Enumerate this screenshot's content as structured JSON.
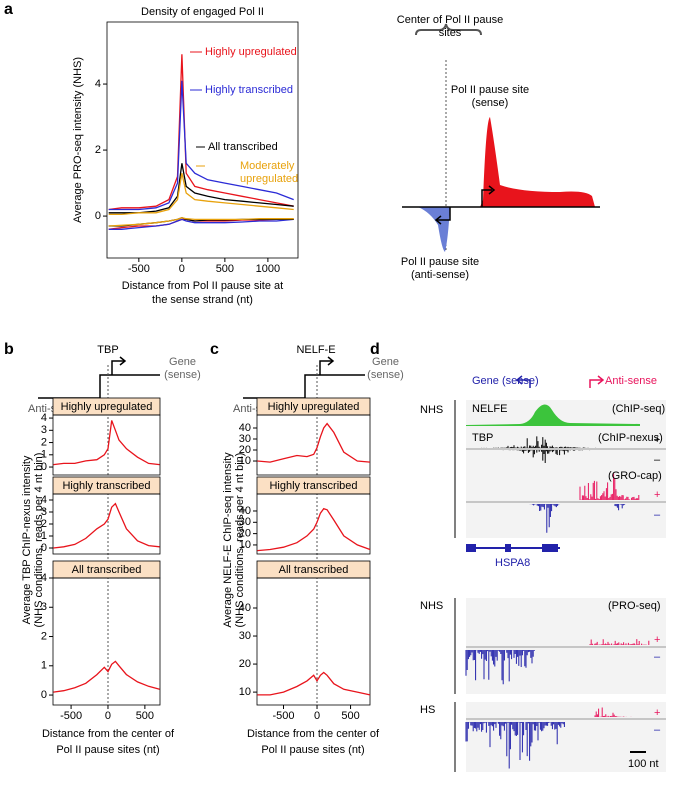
{
  "panel_labels": [
    "a",
    "b",
    "c",
    "d"
  ],
  "chart_data": [
    {
      "type": "line",
      "title": "Density of engaged Pol II",
      "ylabel": "Average PRO-seq intensity (NHS)",
      "xlabel": [
        "Distance from Pol II pause site at",
        "the sense strand (nt)"
      ],
      "x": [
        -850,
        -700,
        -500,
        -300,
        -150,
        -50,
        0,
        50,
        150,
        300,
        500,
        700,
        900,
        1100,
        1300
      ],
      "xlim": [
        -870,
        1350
      ],
      "xticks": [
        -500,
        0,
        500,
        1000
      ],
      "ylim": [
        -1.27,
        5.88
      ],
      "yticks": [
        0,
        2,
        4
      ],
      "series": [
        {
          "name": "Highly upregulated",
          "color": "#e8141c",
          "values": [
            0.2,
            0.25,
            0.25,
            0.3,
            0.5,
            1.2,
            4.9,
            1.3,
            0.9,
            0.8,
            0.7,
            0.6,
            0.5,
            0.4,
            0.3
          ]
        },
        {
          "name": "Highly transcribed",
          "color": "#2b2bd6",
          "values": [
            0.2,
            0.2,
            0.2,
            0.25,
            0.4,
            1.0,
            4.1,
            1.6,
            1.3,
            1.1,
            1.0,
            0.9,
            0.8,
            0.7,
            0.5
          ]
        },
        {
          "name": "All transcribed",
          "color": "#000000",
          "values": [
            0.1,
            0.1,
            0.1,
            0.15,
            0.25,
            0.6,
            1.6,
            0.9,
            0.7,
            0.6,
            0.5,
            0.45,
            0.4,
            0.35,
            0.3
          ]
        },
        {
          "name": "Moderately upregulated",
          "color": "#e8a20c",
          "values": [
            0.05,
            0.05,
            0.1,
            0.1,
            0.2,
            0.5,
            1.3,
            0.7,
            0.5,
            0.45,
            0.4,
            0.35,
            0.3,
            0.25,
            0.2
          ]
        },
        {
          "color": "#e8141c",
          "values": [
            -0.4,
            -0.35,
            -0.3,
            -0.3,
            -0.25,
            -0.15,
            -0.1,
            -0.1,
            -0.15,
            -0.15,
            -0.15,
            -0.12,
            -0.12,
            -0.1,
            -0.1
          ]
        },
        {
          "color": "#2b2bd6",
          "values": [
            -0.4,
            -0.4,
            -0.35,
            -0.3,
            -0.25,
            -0.15,
            -0.1,
            -0.15,
            -0.2,
            -0.2,
            -0.2,
            -0.18,
            -0.15,
            -0.15,
            -0.1
          ]
        },
        {
          "color": "#000000",
          "values": [
            -0.3,
            -0.3,
            -0.25,
            -0.2,
            -0.15,
            -0.1,
            -0.05,
            -0.1,
            -0.15,
            -0.12,
            -0.12,
            -0.1,
            -0.1,
            -0.1,
            -0.1
          ]
        },
        {
          "color": "#e8a20c",
          "values": [
            -0.3,
            -0.28,
            -0.25,
            -0.2,
            -0.15,
            -0.1,
            -0.05,
            -0.08,
            -0.1,
            -0.1,
            -0.1,
            -0.1,
            -0.08,
            -0.08,
            -0.08
          ]
        }
      ]
    },
    {
      "type": "line",
      "title": "Highly upregulated",
      "color": "#e8141c",
      "x": [
        -740,
        -600,
        -450,
        -300,
        -150,
        -50,
        0,
        50,
        100,
        150,
        250,
        400,
        550,
        700
      ],
      "values": [
        0.2,
        0.3,
        0.3,
        0.5,
        0.6,
        1.0,
        1.5,
        3.8,
        3.0,
        2.2,
        1.5,
        0.8,
        0.3,
        0.2
      ],
      "xlim": [
        -745,
        705
      ],
      "ylim": [
        -0.65,
        4.25
      ],
      "yticks": [
        0,
        1,
        2,
        3,
        4
      ]
    },
    {
      "type": "line",
      "title": "Highly transcribed",
      "color": "#e8141c",
      "x": [
        -740,
        -600,
        -450,
        -300,
        -150,
        -50,
        0,
        50,
        100,
        150,
        250,
        400,
        550,
        700
      ],
      "values": [
        0,
        0.1,
        0.3,
        0.8,
        1.6,
        2.0,
        2.4,
        3.4,
        3.7,
        3.0,
        1.6,
        0.6,
        0.2,
        0.1
      ],
      "xlim": [
        -745,
        705
      ],
      "ylim": [
        -0.5,
        4.5
      ],
      "yticks": [
        0,
        1,
        2,
        3,
        4
      ]
    },
    {
      "type": "line",
      "title": "All transcribed",
      "color": "#e8141c",
      "x": [
        -740,
        -600,
        -450,
        -300,
        -150,
        -50,
        0,
        50,
        100,
        150,
        250,
        400,
        550,
        700
      ],
      "values": [
        0.1,
        0.15,
        0.25,
        0.4,
        0.7,
        0.95,
        0.8,
        1.05,
        1.15,
        1.0,
        0.7,
        0.45,
        0.3,
        0.2
      ],
      "xlim": [
        -745,
        705
      ],
      "xticks": [
        -500,
        0,
        500
      ],
      "ylim": [
        -0.34,
        4.0
      ],
      "yticks": [
        0,
        1,
        2,
        3,
        4
      ]
    },
    {
      "type": "line",
      "title": "Highly upregulated",
      "color": "#e8141c",
      "x": [
        -890,
        -700,
        -500,
        -300,
        -150,
        -50,
        0,
        50,
        100,
        150,
        250,
        400,
        600,
        790
      ],
      "values": [
        10,
        9,
        12,
        15,
        14,
        16,
        22,
        32,
        40,
        44,
        36,
        18,
        10,
        9
      ],
      "xlim": [
        -895,
        790
      ],
      "ylim": [
        -2.7,
        51.8
      ],
      "yticks": [
        10,
        20,
        30,
        40
      ]
    },
    {
      "type": "line",
      "title": "Highly transcribed",
      "color": "#e8141c",
      "x": [
        -890,
        -700,
        -500,
        -300,
        -150,
        -50,
        0,
        50,
        100,
        150,
        250,
        400,
        600,
        790
      ],
      "values": [
        5,
        6,
        8,
        12,
        18,
        24,
        30,
        38,
        42,
        41,
        32,
        18,
        10,
        6
      ],
      "xlim": [
        -895,
        790
      ],
      "ylim": [
        2.0,
        55.0
      ],
      "yticks": [
        10,
        20,
        30,
        40
      ]
    },
    {
      "type": "line",
      "title": "All transcribed",
      "color": "#e8141c",
      "x": [
        -890,
        -700,
        -500,
        -300,
        -150,
        -50,
        0,
        50,
        100,
        150,
        250,
        400,
        600,
        790
      ],
      "values": [
        9,
        9,
        10,
        12,
        14,
        16,
        14,
        16,
        17,
        16,
        13,
        11,
        10,
        9
      ],
      "xlim": [
        -895,
        790
      ],
      "xticks": [
        -500,
        0,
        500
      ],
      "ylim": [
        5.4,
        50.7
      ],
      "yticks": [
        10,
        20,
        30,
        40
      ]
    }
  ],
  "diagram_a": {
    "center_label": "Center of Pol II pause sites",
    "sense_label": "Pol II pause site (sense)",
    "antisense_label": "Pol II pause site (anti-sense)"
  },
  "panel_b": {
    "title": "TBP",
    "gene_label": "Gene (sense)",
    "antisense_label": "Anti-sense",
    "ylabel": [
      "Average TBP ChIP-nexus intensity",
      "(NHS conditions, reads per 4 nt bin)"
    ],
    "xlabel": [
      "Distance from the center of",
      "Pol II pause sites (nt)"
    ]
  },
  "panel_c": {
    "title": "NELF-E",
    "gene_label": "Gene (sense)",
    "antisense_label": "Anti-sense",
    "ylabel": [
      "Average NELF-E ChIP-seq intensity",
      "(NHS conditions, reads per 4 nt bin)"
    ],
    "xlabel": [
      "Distance from the center of",
      "Pol II pause sites (nt)"
    ]
  },
  "panel_d": {
    "gene_label": "Gene (sense)",
    "antisense_label": "Anti-sense",
    "groups": [
      "NHS",
      "NHS",
      "HS"
    ],
    "tracks": [
      "NELFE",
      "TBP"
    ],
    "assays": [
      "(ChIP-seq)",
      "(ChIP-nexus)",
      "(GRO-cap)",
      "(PRO-seq)"
    ],
    "strands": [
      "+",
      "–"
    ],
    "gene": "HSPA8",
    "scale": "100 nt"
  }
}
